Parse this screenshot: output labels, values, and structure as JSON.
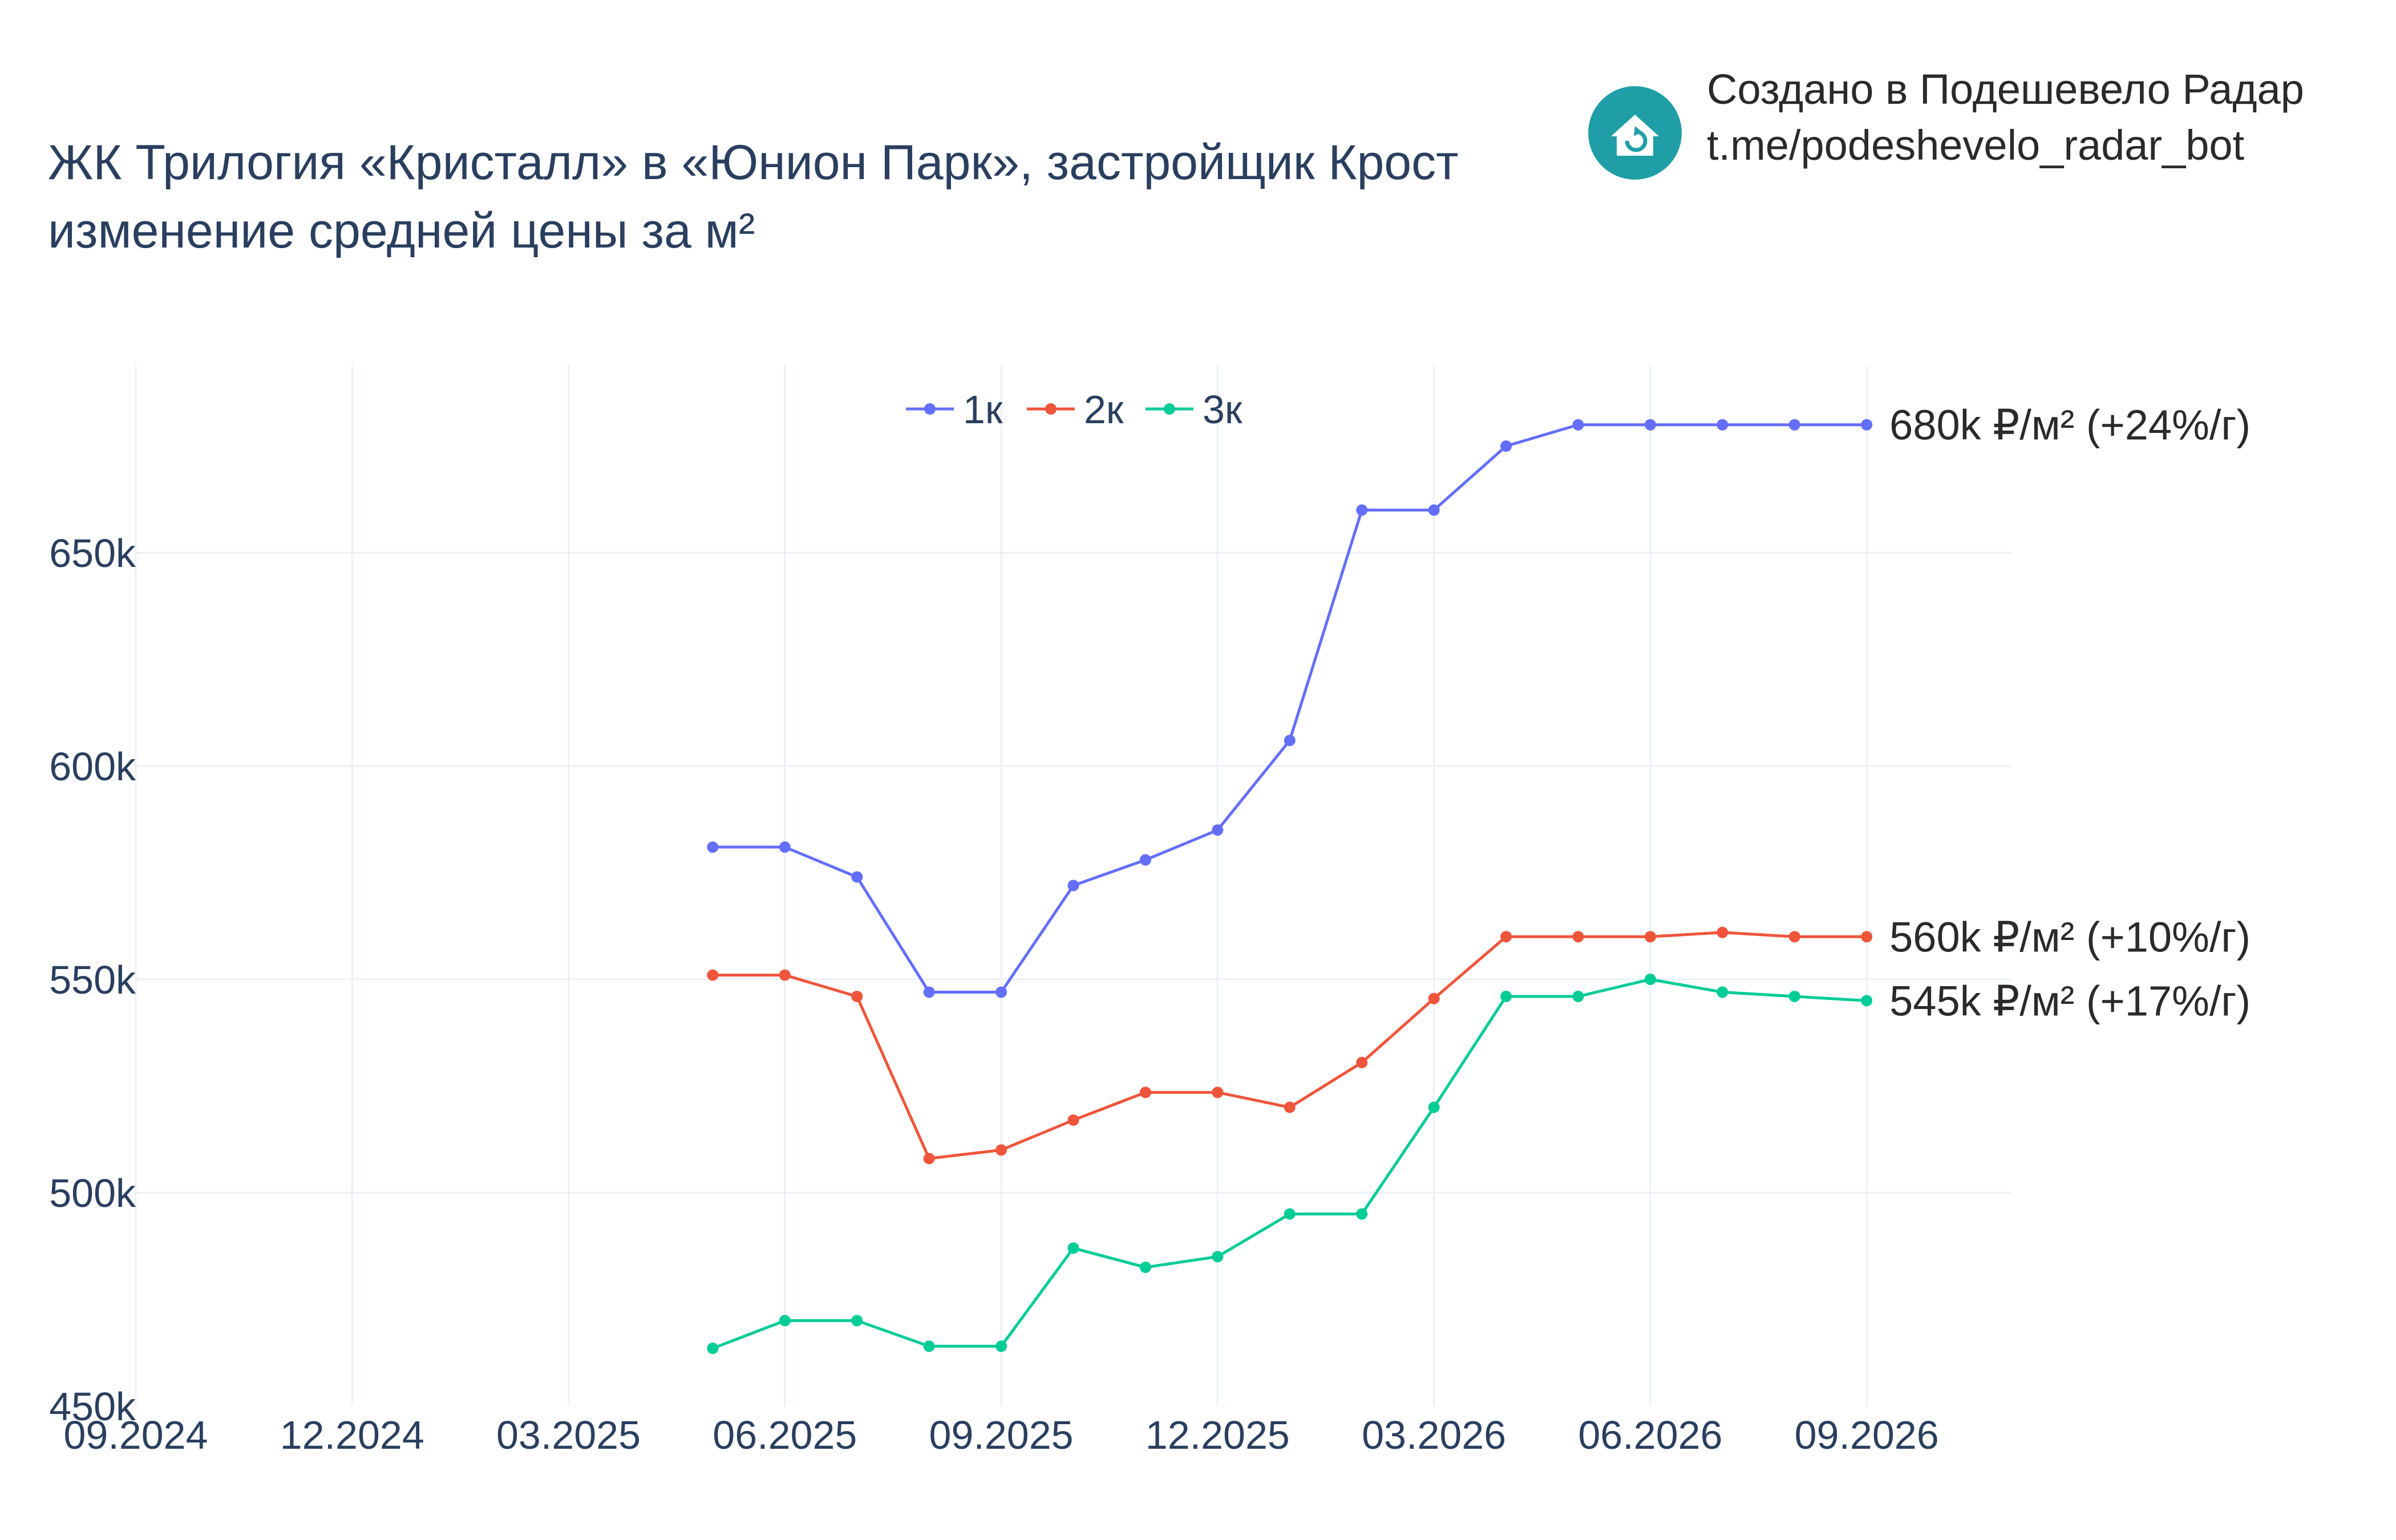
{
  "header": {
    "title_line1": "ЖК Трилогия «Кристалл» в «Юнион Парк», застройщик Крост",
    "title_line2": "изменение средней цены за м²",
    "credit_line1": "Создано в Подешевело Радар",
    "credit_line2": "t.me/podeshevelo_radar_bot",
    "logo_icon": "house-refresh-icon",
    "logo_color": "#1f9ea7"
  },
  "chart_data": {
    "type": "line",
    "title": "ЖК Трилогия «Кристалл» в «Юнион Парк», застройщик Крост",
    "subtitle": "изменение средней цены за м²",
    "xlabel": "",
    "ylabel": "",
    "x_ticks": [
      "09.2024",
      "12.2024",
      "03.2025",
      "06.2025",
      "09.2025",
      "12.2025",
      "03.2026",
      "06.2026",
      "09.2026"
    ],
    "y_ticks": [
      "450k",
      "500k",
      "550k",
      "600k",
      "650k"
    ],
    "y_tick_values": [
      450000,
      500000,
      550000,
      600000,
      650000
    ],
    "ylim": [
      450000,
      694000
    ],
    "xlim": [
      "2024-09",
      "2026-11"
    ],
    "grid": true,
    "legend_position": "top-center",
    "x": [
      "2025-05",
      "2025-06",
      "2025-07",
      "2025-08",
      "2025-09",
      "2025-10",
      "2025-11",
      "2025-12",
      "2026-01",
      "2026-02",
      "2026-03",
      "2026-04",
      "2026-05",
      "2026-06",
      "2026-07",
      "2026-08",
      "2026-09"
    ],
    "series": [
      {
        "name": "1к",
        "color": "#636efa",
        "values": [
          581000,
          581000,
          574000,
          547000,
          547000,
          572000,
          578000,
          585000,
          606000,
          660000,
          660000,
          675000,
          680000,
          680000,
          680000,
          680000,
          680000
        ],
        "end_label": "680k ₽/м² (+24%/г)"
      },
      {
        "name": "2к",
        "color": "#ef553b",
        "values": [
          551000,
          551000,
          546000,
          508000,
          510000,
          517000,
          523500,
          523500,
          520000,
          530500,
          545500,
          560000,
          560000,
          560000,
          561000,
          560000,
          560000
        ],
        "end_label": "560k ₽/м² (+10%/г)"
      },
      {
        "name": "3к",
        "color": "#00cc96",
        "values": [
          463500,
          470000,
          470000,
          464000,
          464000,
          487000,
          482500,
          485000,
          495000,
          495000,
          520000,
          546000,
          546000,
          550000,
          547000,
          546000,
          545000
        ],
        "end_label": "545k ₽/м² (+17%/г)"
      }
    ]
  }
}
